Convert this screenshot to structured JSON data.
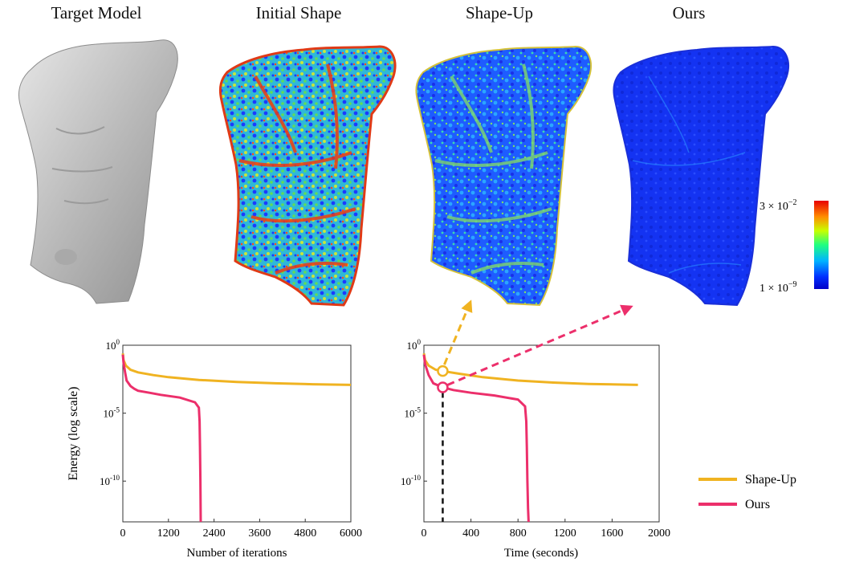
{
  "titles": {
    "target": "Target Model",
    "initial": "Initial Shape",
    "shapeup": "Shape-Up",
    "ours": "Ours"
  },
  "colorbar": {
    "max_label": "3 × 10",
    "max_exp": "−2",
    "min_label": "1 × 10",
    "min_exp": "−9"
  },
  "colors": {
    "shapeup": "#f0b321",
    "ours": "#ec2f6b",
    "mesh_gray": "#bdbdbd",
    "jet_blue": "#1a3bff"
  },
  "legend": {
    "shapeup": "Shape-Up",
    "ours": "Ours"
  },
  "chart_data": [
    {
      "type": "line",
      "xlabel": "Number of iterations",
      "ylabel": "Energy (log scale)",
      "xlim": [
        0,
        6000
      ],
      "ylim_log10": [
        -13,
        0
      ],
      "xticks": [
        0,
        1200,
        2400,
        3600,
        4800,
        6000
      ],
      "ytick_labels": [
        {
          "base": "10",
          "exp": "0",
          "value": 0
        },
        {
          "base": "10",
          "exp": "-5",
          "value": -5
        },
        {
          "base": "10",
          "exp": "-10",
          "value": -10
        }
      ],
      "series": [
        {
          "name": "Shape-Up",
          "x": [
            0,
            20,
            80,
            200,
            400,
            800,
            1200,
            2000,
            3000,
            4000,
            5000,
            6000
          ],
          "log10_y": [
            -0.6,
            -1.1,
            -1.5,
            -1.8,
            -2.0,
            -2.2,
            -2.35,
            -2.55,
            -2.7,
            -2.8,
            -2.87,
            -2.92
          ]
        },
        {
          "name": "Ours",
          "x": [
            0,
            20,
            60,
            100,
            200,
            300,
            400,
            700,
            1000,
            1500,
            1900,
            2000,
            2020,
            2030,
            2040,
            2050
          ],
          "log10_y": [
            -0.7,
            -1.3,
            -2.0,
            -2.6,
            -3.0,
            -3.2,
            -3.35,
            -3.5,
            -3.65,
            -3.85,
            -4.2,
            -4.6,
            -5.6,
            -7.5,
            -10.0,
            -13.0
          ]
        }
      ]
    },
    {
      "type": "line",
      "xlabel": "Time (seconds)",
      "ylabel": "",
      "xlim": [
        0,
        2000
      ],
      "ylim_log10": [
        -13,
        0
      ],
      "xticks": [
        0,
        400,
        800,
        1200,
        1600,
        2000
      ],
      "ytick_labels": [
        {
          "base": "10",
          "exp": "0",
          "value": 0
        },
        {
          "base": "10",
          "exp": "-5",
          "value": -5
        },
        {
          "base": "10",
          "exp": "-10",
          "value": -10
        }
      ],
      "marker_time": 160,
      "series": [
        {
          "name": "Shape-Up",
          "x": [
            0,
            10,
            40,
            100,
            160,
            300,
            500,
            800,
            1100,
            1400,
            1820
          ],
          "log10_y": [
            -0.6,
            -1.1,
            -1.5,
            -1.8,
            -1.9,
            -2.1,
            -2.35,
            -2.6,
            -2.75,
            -2.85,
            -2.92
          ]
        },
        {
          "name": "Ours",
          "x": [
            0,
            10,
            40,
            80,
            160,
            250,
            400,
            600,
            800,
            860,
            870,
            875,
            880,
            885,
            890
          ],
          "log10_y": [
            -0.7,
            -1.4,
            -2.2,
            -2.8,
            -3.1,
            -3.3,
            -3.5,
            -3.7,
            -4.0,
            -4.5,
            -5.6,
            -7.5,
            -10.0,
            -12.0,
            -13.0
          ]
        }
      ]
    }
  ]
}
